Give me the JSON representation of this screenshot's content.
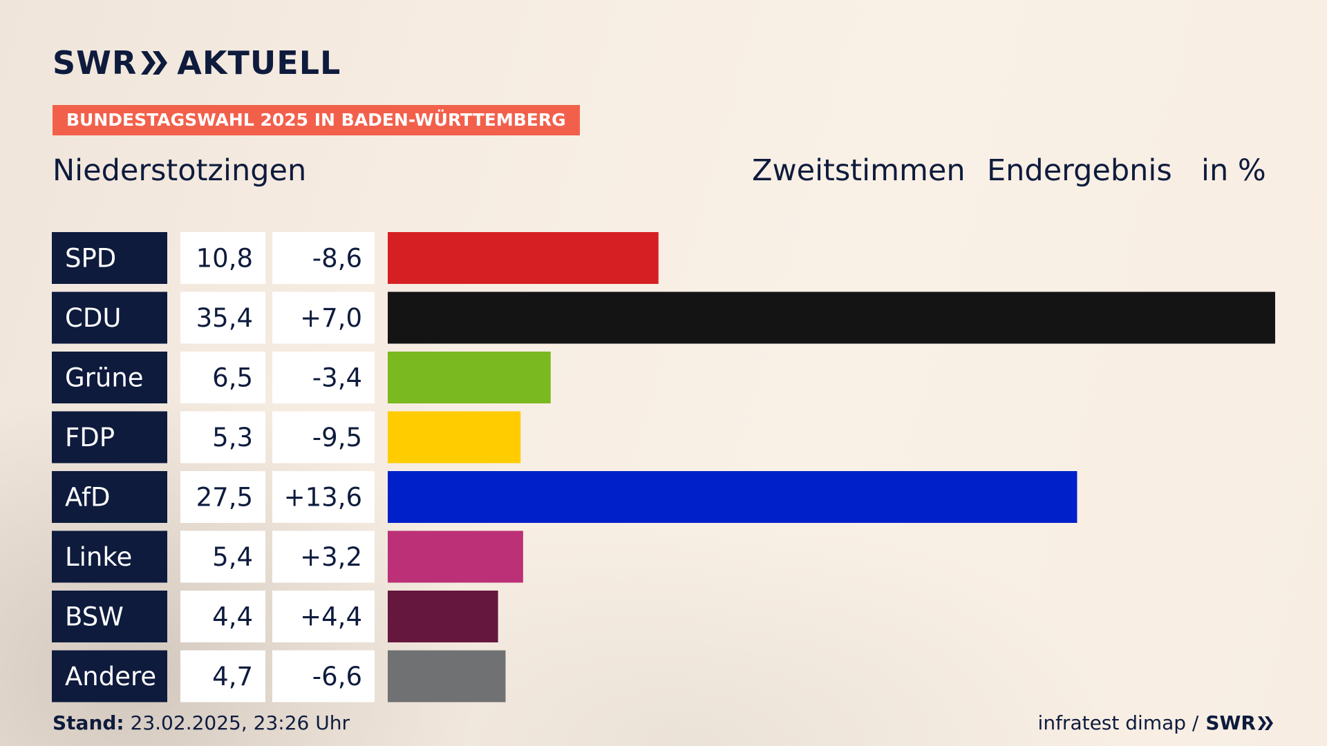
{
  "brand": {
    "name_left": "SWR",
    "name_right": "AKTUELL"
  },
  "kicker": "BUNDESTAGSWAHL 2025 IN BADEN-WÜRTTEMBERG",
  "place": "Niederstotzingen",
  "headers": {
    "vote_type": "Zweitstimmen",
    "status": "Endergebnis",
    "unit": "in %"
  },
  "chart_data": {
    "type": "bar",
    "orientation": "horizontal",
    "categories": [
      "SPD",
      "CDU",
      "Grüne",
      "FDP",
      "AfD",
      "Linke",
      "BSW",
      "Andere"
    ],
    "values": [
      10.8,
      35.4,
      6.5,
      5.3,
      27.5,
      5.4,
      4.4,
      4.7
    ],
    "value_labels": [
      "10,8",
      "35,4",
      "6,5",
      "5,3",
      "27,5",
      "5,4",
      "4,4",
      "4,7"
    ],
    "changes": [
      -8.6,
      7.0,
      -3.4,
      -9.5,
      13.6,
      3.2,
      4.4,
      -6.6
    ],
    "change_labels": [
      "-8,6",
      "+7,0",
      "-3,4",
      "-9,5",
      "+13,6",
      "+3,2",
      "+4,4",
      "-6,6"
    ],
    "colors": [
      "#d61f23",
      "#141414",
      "#7ab91f",
      "#ffcc00",
      "#0021c9",
      "#bb3076",
      "#66173e",
      "#707172"
    ],
    "xlim": [
      0,
      35.4
    ]
  },
  "footer": {
    "stand_label": "Stand:",
    "stand_value": "23.02.2025, 23:26 Uhr",
    "source": "infratest dimap /",
    "source_logo": "SWR"
  }
}
